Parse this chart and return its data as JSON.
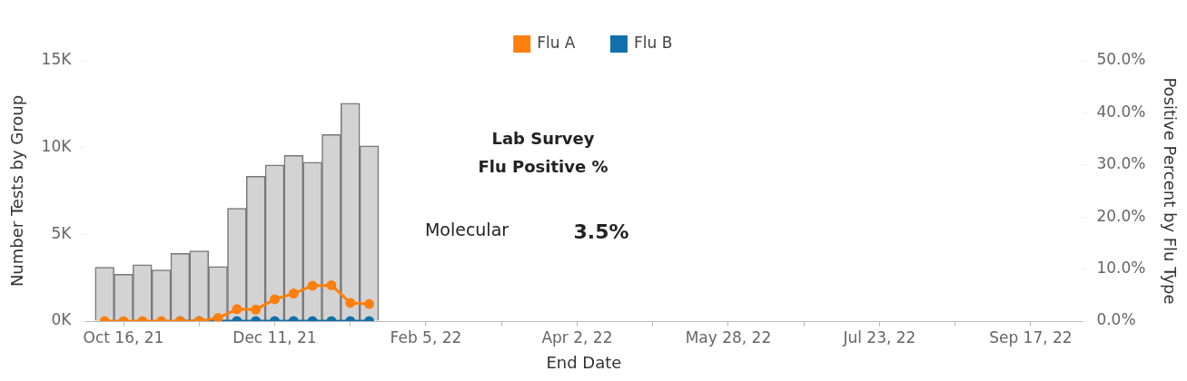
{
  "chart_data": {
    "type": "bar",
    "xlabel": "End Date",
    "ylabel": "Number Tests by Group",
    "y2label": "Positive Percent by Flu Type",
    "x": [
      "2021-10-09",
      "2021-10-16",
      "2021-10-23",
      "2021-10-30",
      "2021-11-06",
      "2021-11-13",
      "2021-11-20",
      "2021-11-27",
      "2021-12-04",
      "2021-12-11",
      "2021-12-18",
      "2021-12-25",
      "2022-01-01",
      "2022-01-08",
      "2022-01-15"
    ],
    "series": [
      {
        "color": "#d3d3d3",
        "values": [
          3100,
          2700,
          3250,
          2950,
          3900,
          4050,
          3150,
          6500,
          8350,
          9000,
          9550,
          9150,
          10750,
          12550,
          10100
        ]
      },
      {
        "name": "Flu A",
        "type": "line",
        "axis": "y2",
        "color": "#ff7f0e",
        "values": [
          0,
          0,
          0,
          0,
          0,
          0,
          0.6,
          2.3,
          2.2,
          4.2,
          5.3,
          6.8,
          6.9,
          3.5,
          3.3
        ]
      },
      {
        "name": "Flu B",
        "type": "line",
        "axis": "y2",
        "color": "#1170aa",
        "values": [
          null,
          null,
          null,
          null,
          0,
          0,
          0,
          0,
          0,
          0,
          0,
          0,
          0,
          0,
          0
        ]
      }
    ],
    "xlim": [
      "2021-10-02",
      "2022-10-06"
    ],
    "xticks": [
      {
        "value": "2021-10-16",
        "label": "Oct 16, 21"
      },
      {
        "value": "2021-11-13",
        "label": null
      },
      {
        "value": "2021-12-11",
        "label": "Dec 11, 21"
      },
      {
        "value": "2022-01-08",
        "label": null
      },
      {
        "value": "2022-02-05",
        "label": "Feb 5, 22"
      },
      {
        "value": "2022-03-05",
        "label": null
      },
      {
        "value": "2022-04-02",
        "label": "Apr 2, 22"
      },
      {
        "value": "2022-04-30",
        "label": null
      },
      {
        "value": "2022-05-28",
        "label": "May 28, 22"
      },
      {
        "value": "2022-06-25",
        "label": null
      },
      {
        "value": "2022-07-23",
        "label": "Jul 23, 22"
      },
      {
        "value": "2022-08-20",
        "label": null
      },
      {
        "value": "2022-09-17",
        "label": "Sep 17, 22"
      }
    ],
    "ylim": [
      0,
      15000
    ],
    "yticks": [
      {
        "value": 0,
        "label": "0K"
      },
      {
        "value": 5000,
        "label": "5K"
      },
      {
        "value": 10000,
        "label": "10K"
      },
      {
        "value": 15000,
        "label": "15K"
      }
    ],
    "y2lim": [
      0,
      50
    ],
    "y2ticks": [
      {
        "value": 0,
        "label": "0.0%"
      },
      {
        "value": 10,
        "label": "10.0%"
      },
      {
        "value": 20,
        "label": "20.0%"
      },
      {
        "value": 30,
        "label": "30.0%"
      },
      {
        "value": 40,
        "label": "40.0%"
      },
      {
        "value": 50,
        "label": "50.0%"
      }
    ],
    "annotations": [
      "Lab Survey",
      "Flu Positive %",
      "Molecular",
      "3.5%"
    ],
    "legend": "top",
    "marker": "circle",
    "line_style": "solid",
    "grid": false
  }
}
